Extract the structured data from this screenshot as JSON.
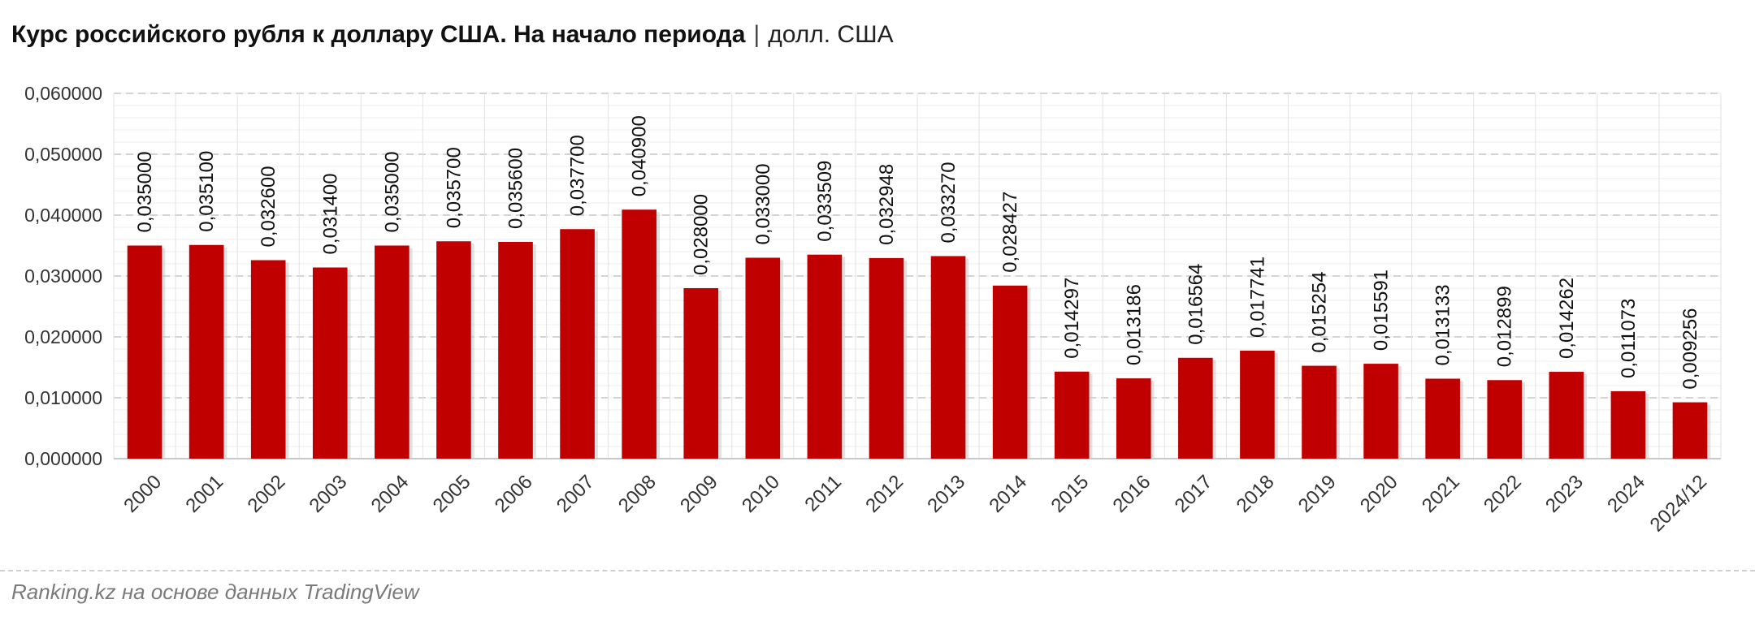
{
  "chart_data": {
    "type": "bar",
    "title": "Курс российского рубля к доллару США. На начало периода",
    "title_separator": "|",
    "unit": "долл. США",
    "categories": [
      "2000",
      "2001",
      "2002",
      "2003",
      "2004",
      "2005",
      "2006",
      "2007",
      "2008",
      "2009",
      "2010",
      "2011",
      "2012",
      "2013",
      "2014",
      "2015",
      "2016",
      "2017",
      "2018",
      "2019",
      "2020",
      "2021",
      "2022",
      "2023",
      "2024",
      "2024/12"
    ],
    "values": [
      0.035,
      0.0351,
      0.0326,
      0.0314,
      0.035,
      0.0357,
      0.0356,
      0.0377,
      0.0409,
      0.028,
      0.033,
      0.033509,
      0.032948,
      0.03327,
      0.028427,
      0.014297,
      0.013186,
      0.016564,
      0.017741,
      0.015254,
      0.015591,
      0.013133,
      0.012899,
      0.014262,
      0.011073,
      0.009256
    ],
    "value_labels": [
      "0,035000",
      "0,035100",
      "0,032600",
      "0,031400",
      "0,035000",
      "0,035700",
      "0,035600",
      "0,037700",
      "0,040900",
      "0,028000",
      "0,033000",
      "0,033509",
      "0,032948",
      "0,033270",
      "0,028427",
      "0,014297",
      "0,013186",
      "0,016564",
      "0,017741",
      "0,015254",
      "0,015591",
      "0,013133",
      "0,012899",
      "0,014262",
      "0,011073",
      "0,009256"
    ],
    "ylim": [
      0,
      0.06
    ],
    "yticks": [
      0,
      0.01,
      0.02,
      0.03,
      0.04,
      0.05,
      0.06
    ],
    "ytick_labels": [
      "0,000000",
      "0,010000",
      "0,020000",
      "0,030000",
      "0,040000",
      "0,050000",
      "0,060000"
    ],
    "grid": true,
    "bar_color": "#c00000"
  },
  "source": "Ranking.kz на основе данных TradingView"
}
